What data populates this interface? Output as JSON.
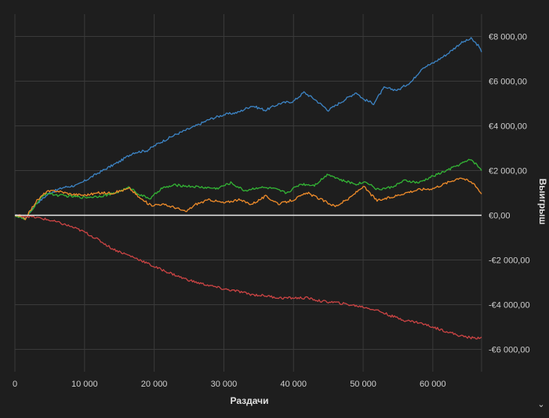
{
  "chart_data": {
    "type": "line",
    "title": "",
    "xlabel": "Раздачи",
    "ylabel": "Выигрыш",
    "xlim": [
      0,
      67000
    ],
    "ylim": [
      -7000,
      9000
    ],
    "grid": true,
    "legend": "none",
    "x_ticks": [
      {
        "value": 0,
        "label": "0"
      },
      {
        "value": 10000,
        "label": "10 000"
      },
      {
        "value": 20000,
        "label": "20 000"
      },
      {
        "value": 30000,
        "label": "30 000"
      },
      {
        "value": 40000,
        "label": "40 000"
      },
      {
        "value": 50000,
        "label": "50 000"
      },
      {
        "value": 60000,
        "label": "60 000"
      }
    ],
    "y_ticks": [
      {
        "value": 8000,
        "label": "€8 000,00"
      },
      {
        "value": 6000,
        "label": "€6 000,00"
      },
      {
        "value": 4000,
        "label": "€4 000,00"
      },
      {
        "value": 2000,
        "label": "€2 000,00"
      },
      {
        "value": 0,
        "label": "€0,00"
      },
      {
        "value": -2000,
        "label": "-€2 000,00"
      },
      {
        "value": -4000,
        "label": "-€4 000,00"
      },
      {
        "value": -6000,
        "label": "-€6 000,00"
      }
    ],
    "zero_line_color": "#e8e8e8",
    "series": [
      {
        "color": "#3d85c6",
        "x": [
          0,
          1500,
          3000,
          5000,
          7000,
          9000,
          12000,
          15000,
          17000,
          19000,
          20500,
          23000,
          26000,
          28000,
          30000,
          32000,
          34000,
          36000,
          38000,
          40000,
          41500,
          43000,
          45000,
          47000,
          49000,
          50000,
          51500,
          53000,
          55000,
          57000,
          58500,
          60000,
          62000,
          64000,
          65500,
          66500,
          67000
        ],
        "y": [
          0,
          -150,
          500,
          1000,
          1250,
          1350,
          1900,
          2400,
          2800,
          2900,
          3200,
          3600,
          4000,
          4300,
          4500,
          4600,
          4900,
          4700,
          5000,
          5100,
          5500,
          5200,
          4700,
          5100,
          5500,
          5200,
          5000,
          5700,
          5600,
          6000,
          6600,
          6800,
          7200,
          7700,
          7900,
          7600,
          7300
        ]
      },
      {
        "color": "#33b535",
        "x": [
          0,
          1500,
          3000,
          4500,
          6000,
          8000,
          10000,
          12000,
          14000,
          16500,
          18000,
          19500,
          21000,
          23000,
          25000,
          27000,
          29000,
          31000,
          33000,
          35000,
          37000,
          39000,
          41000,
          43000,
          45000,
          47000,
          49000,
          50500,
          52000,
          54000,
          56000,
          58000,
          60000,
          62000,
          64000,
          65500,
          66500,
          67000
        ],
        "y": [
          0,
          -200,
          500,
          1000,
          900,
          850,
          800,
          850,
          950,
          1250,
          900,
          750,
          1200,
          1350,
          1300,
          1250,
          1200,
          1450,
          1100,
          1250,
          1200,
          1000,
          1400,
          1350,
          1850,
          1550,
          1400,
          1500,
          1150,
          1250,
          1550,
          1450,
          1750,
          2000,
          2300,
          2500,
          2200,
          2000
        ]
      },
      {
        "color": "#f08c2a",
        "x": [
          0,
          1500,
          3000,
          4500,
          6000,
          8000,
          10000,
          12000,
          14000,
          16500,
          18000,
          19500,
          21000,
          23000,
          24500,
          26000,
          28000,
          30000,
          32000,
          34000,
          36000,
          38000,
          40000,
          42000,
          44000,
          46000,
          48000,
          50000,
          52000,
          54000,
          56000,
          58000,
          60000,
          62000,
          64000,
          66000,
          67000
        ],
        "y": [
          0,
          -150,
          600,
          1050,
          1100,
          950,
          900,
          1000,
          1000,
          1200,
          750,
          450,
          500,
          350,
          150,
          500,
          700,
          550,
          700,
          500,
          850,
          500,
          700,
          1000,
          700,
          400,
          750,
          1300,
          650,
          800,
          1000,
          1150,
          1200,
          1450,
          1700,
          1400,
          950
        ]
      },
      {
        "color": "#cc4444",
        "x": [
          0,
          2000,
          4000,
          6000,
          8000,
          10000,
          12000,
          14000,
          16000,
          18000,
          20000,
          22000,
          24000,
          26000,
          28000,
          30000,
          32000,
          34000,
          36000,
          38000,
          40000,
          42000,
          44000,
          46000,
          48000,
          50000,
          52000,
          54000,
          56000,
          58000,
          60000,
          62000,
          64000,
          66000,
          67000
        ],
        "y": [
          0,
          -50,
          -150,
          -300,
          -500,
          -750,
          -1100,
          -1500,
          -1750,
          -2000,
          -2300,
          -2550,
          -2800,
          -3000,
          -3150,
          -3300,
          -3400,
          -3550,
          -3600,
          -3700,
          -3700,
          -3700,
          -3850,
          -3900,
          -4000,
          -4100,
          -4250,
          -4500,
          -4700,
          -4800,
          -5000,
          -5200,
          -5400,
          -5500,
          -5450
        ]
      }
    ]
  },
  "corner_icon": "chevron-down-icon",
  "corner_glyph": "⌄"
}
